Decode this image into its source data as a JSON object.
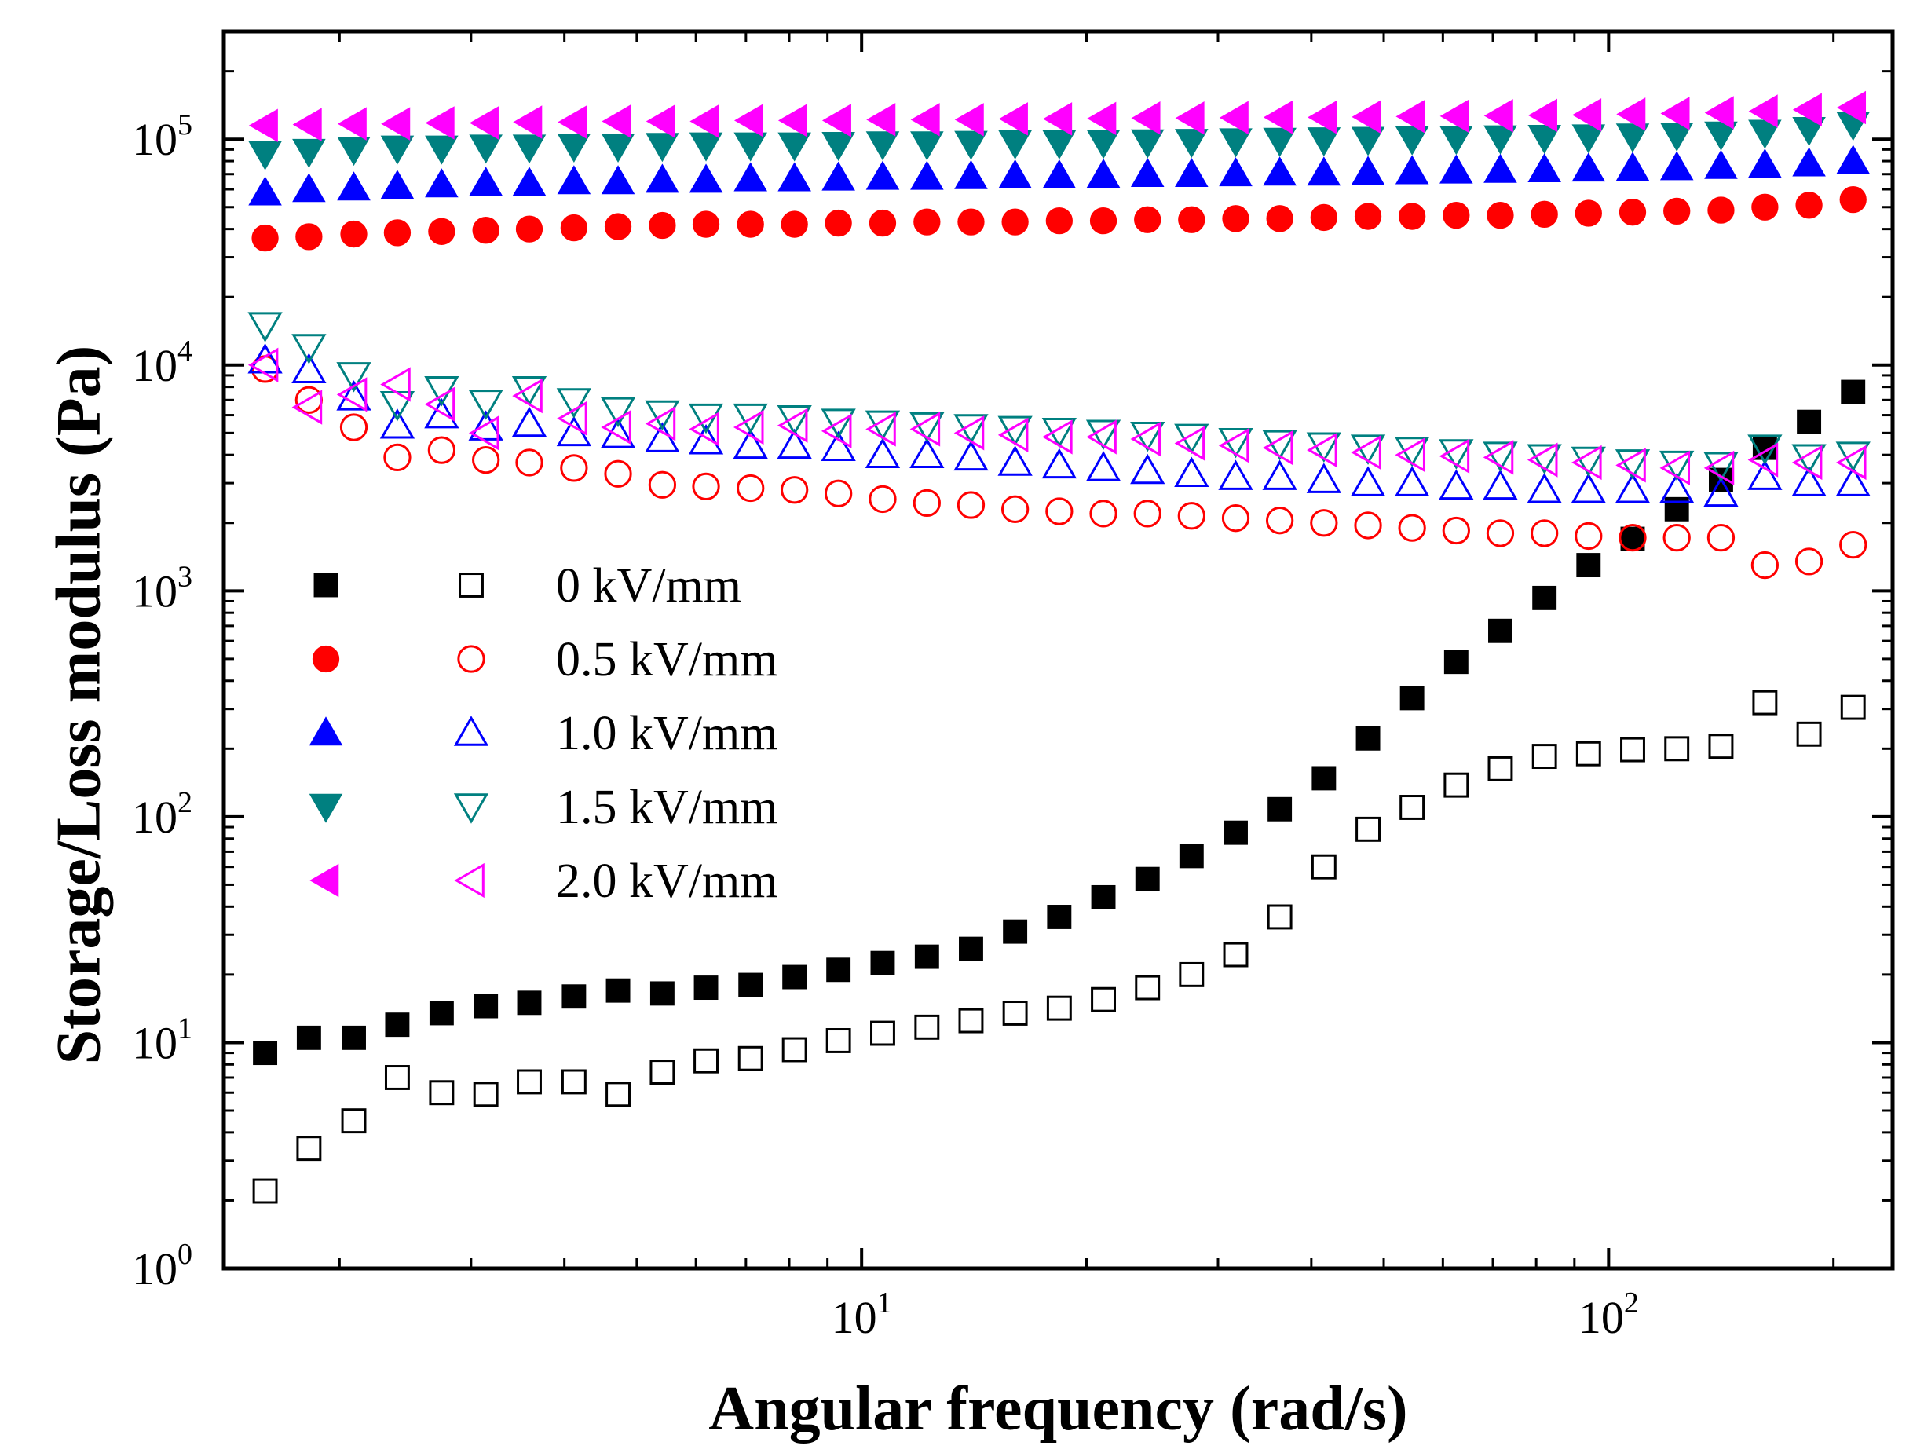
{
  "chart_data": {
    "type": "scatter",
    "title": "",
    "xlabel": "Angular frequency (rad/s)",
    "ylabel": "Storage/Loss modulus (Pa)",
    "xscale": "log",
    "yscale": "log",
    "xlim": [
      1.4,
      240
    ],
    "ylim": [
      1,
      300000
    ],
    "x_ticks": [
      {
        "base": "10",
        "exp": "1",
        "value": 10
      },
      {
        "base": "10",
        "exp": "2",
        "value": 100
      }
    ],
    "y_ticks": [
      {
        "base": "10",
        "exp": "0",
        "value": 1
      },
      {
        "base": "10",
        "exp": "1",
        "value": 10
      },
      {
        "base": "10",
        "exp": "2",
        "value": 100
      },
      {
        "base": "10",
        "exp": "3",
        "value": 1000
      },
      {
        "base": "10",
        "exp": "4",
        "value": 10000
      },
      {
        "base": "10",
        "exp": "5",
        "value": 100000
      }
    ],
    "legend_position": "center-left",
    "x": [
      1.59,
      1.82,
      2.09,
      2.39,
      2.74,
      3.14,
      3.59,
      4.12,
      4.72,
      5.41,
      6.19,
      7.1,
      8.13,
      9.31,
      10.67,
      12.23,
      14.01,
      16.05,
      18.39,
      21.07,
      24.14,
      27.65,
      31.68,
      36.29,
      41.58,
      47.64,
      54.57,
      62.52,
      71.62,
      82.06,
      94.0,
      107.7,
      123.4,
      141.4,
      161.9,
      185.5,
      212.5
    ],
    "series": [
      {
        "name": "0 kV/mm",
        "kind": "storage",
        "marker": "square",
        "filled": true,
        "color": "#000000",
        "values": [
          9,
          10.5,
          10.5,
          12,
          13.5,
          14.5,
          15,
          16,
          17,
          16.5,
          17.5,
          18,
          19.5,
          21,
          22.5,
          24,
          26,
          31,
          36,
          44,
          53,
          67,
          85,
          108,
          148,
          222,
          335,
          485,
          665,
          930,
          1300,
          1700,
          2300,
          3100,
          4300,
          5600,
          7600
        ]
      },
      {
        "name": "0 kV/mm",
        "kind": "loss",
        "marker": "square",
        "filled": false,
        "color": "#000000",
        "values": [
          2.2,
          3.4,
          4.5,
          7,
          6,
          5.9,
          6.7,
          6.7,
          5.9,
          7.4,
          8.3,
          8.5,
          9.3,
          10.2,
          11,
          11.7,
          12.5,
          13.5,
          14.2,
          15.5,
          17.5,
          20,
          24.5,
          36,
          60,
          88,
          110,
          138,
          163,
          185,
          190,
          198,
          200,
          205,
          320,
          232,
          305
        ]
      },
      {
        "name": "0.5 kV/mm",
        "kind": "storage",
        "marker": "circle",
        "filled": true,
        "color": "#ff0000",
        "values": [
          36500,
          37000,
          38000,
          38500,
          39000,
          39500,
          40000,
          40500,
          41000,
          41500,
          42000,
          42000,
          42000,
          42500,
          42500,
          43000,
          43000,
          43000,
          43500,
          43500,
          44000,
          44000,
          44500,
          44500,
          45000,
          45500,
          45500,
          46000,
          46000,
          46500,
          47000,
          47500,
          48000,
          48500,
          50000,
          51000,
          54000
        ]
      },
      {
        "name": "0.5 kV/mm",
        "kind": "loss",
        "marker": "circle",
        "filled": false,
        "color": "#ff0000",
        "values": [
          9600,
          7000,
          5300,
          3900,
          4200,
          3800,
          3700,
          3500,
          3300,
          2950,
          2900,
          2850,
          2800,
          2700,
          2550,
          2450,
          2400,
          2300,
          2250,
          2200,
          2200,
          2150,
          2100,
          2050,
          2000,
          1950,
          1900,
          1850,
          1800,
          1800,
          1750,
          1720,
          1720,
          1720,
          1300,
          1350,
          1600
        ]
      },
      {
        "name": "1.0 kV/mm",
        "kind": "storage",
        "marker": "triangle-up",
        "filled": true,
        "color": "#0000ff",
        "values": [
          58000,
          60000,
          61000,
          62000,
          63000,
          64000,
          64000,
          65000,
          65000,
          66000,
          66000,
          67000,
          67000,
          67500,
          68000,
          68000,
          68500,
          69000,
          69000,
          69500,
          70000,
          70000,
          70500,
          71000,
          71000,
          71500,
          72000,
          72500,
          73000,
          73500,
          74000,
          74500,
          75000,
          76000,
          77000,
          78000,
          80000
        ]
      },
      {
        "name": "1.0 kV/mm",
        "kind": "loss",
        "marker": "triangle-up",
        "filled": false,
        "color": "#0000ff",
        "values": [
          10500,
          9500,
          7200,
          5400,
          6000,
          5300,
          5500,
          5000,
          4900,
          4700,
          4600,
          4400,
          4400,
          4300,
          4000,
          4000,
          3900,
          3700,
          3600,
          3500,
          3400,
          3300,
          3200,
          3200,
          3100,
          3000,
          3000,
          2900,
          2900,
          2800,
          2800,
          2800,
          2800,
          2700,
          3200,
          3000,
          3000
        ]
      },
      {
        "name": "1.5 kV/mm",
        "kind": "storage",
        "marker": "triangle-down",
        "filled": true,
        "color": "#008080",
        "values": [
          86000,
          88000,
          90000,
          91000,
          91000,
          92000,
          92000,
          93000,
          93000,
          93500,
          94000,
          94000,
          94000,
          94500,
          95000,
          95000,
          95500,
          96000,
          96000,
          96500,
          97000,
          97500,
          98000,
          98500,
          99000,
          99500,
          100000,
          100500,
          101000,
          101500,
          102000,
          103000,
          104000,
          105000,
          107000,
          110000,
          116000
        ]
      },
      {
        "name": "1.5 kV/mm",
        "kind": "loss",
        "marker": "triangle-down",
        "filled": false,
        "color": "#008080",
        "values": [
          15000,
          12000,
          9000,
          6700,
          7800,
          6800,
          7800,
          6900,
          6300,
          6100,
          5900,
          5900,
          5800,
          5600,
          5500,
          5400,
          5300,
          5200,
          5100,
          5000,
          4900,
          4800,
          4600,
          4500,
          4400,
          4300,
          4200,
          4100,
          4000,
          3900,
          3800,
          3700,
          3650,
          3600,
          4300,
          3900,
          4000
        ]
      },
      {
        "name": "2.0 kV/mm",
        "kind": "storage",
        "marker": "triangle-left",
        "filled": true,
        "color": "#ff00ff",
        "values": [
          115000,
          116000,
          117000,
          117000,
          118000,
          118000,
          119000,
          119000,
          120000,
          120000,
          120000,
          121000,
          121000,
          121000,
          122000,
          122000,
          122000,
          123000,
          123000,
          123500,
          124000,
          124000,
          124500,
          125000,
          125000,
          125500,
          126000,
          126500,
          127000,
          127500,
          128000,
          129000,
          130000,
          131000,
          133000,
          135000,
          138000
        ]
      },
      {
        "name": "2.0 kV/mm",
        "kind": "loss",
        "marker": "triangle-left",
        "filled": false,
        "color": "#ff00ff",
        "values": [
          10000,
          6500,
          7400,
          8200,
          6700,
          5000,
          7300,
          5800,
          5300,
          5500,
          5200,
          5300,
          5400,
          5100,
          5200,
          5200,
          5000,
          4900,
          4800,
          4800,
          4700,
          4500,
          4400,
          4300,
          4200,
          4100,
          4000,
          3950,
          3900,
          3800,
          3700,
          3600,
          3500,
          3500,
          3800,
          3700,
          3700
        ]
      }
    ],
    "legend": [
      {
        "label": "0 kV/mm",
        "marker": "square",
        "color": "#000000"
      },
      {
        "label": "0.5 kV/mm",
        "marker": "circle",
        "color": "#ff0000"
      },
      {
        "label": "1.0 kV/mm",
        "marker": "triangle-up",
        "color": "#0000ff"
      },
      {
        "label": "1.5 kV/mm",
        "marker": "triangle-down",
        "color": "#008080"
      },
      {
        "label": "2.0 kV/mm",
        "marker": "triangle-left",
        "color": "#ff00ff"
      }
    ]
  }
}
